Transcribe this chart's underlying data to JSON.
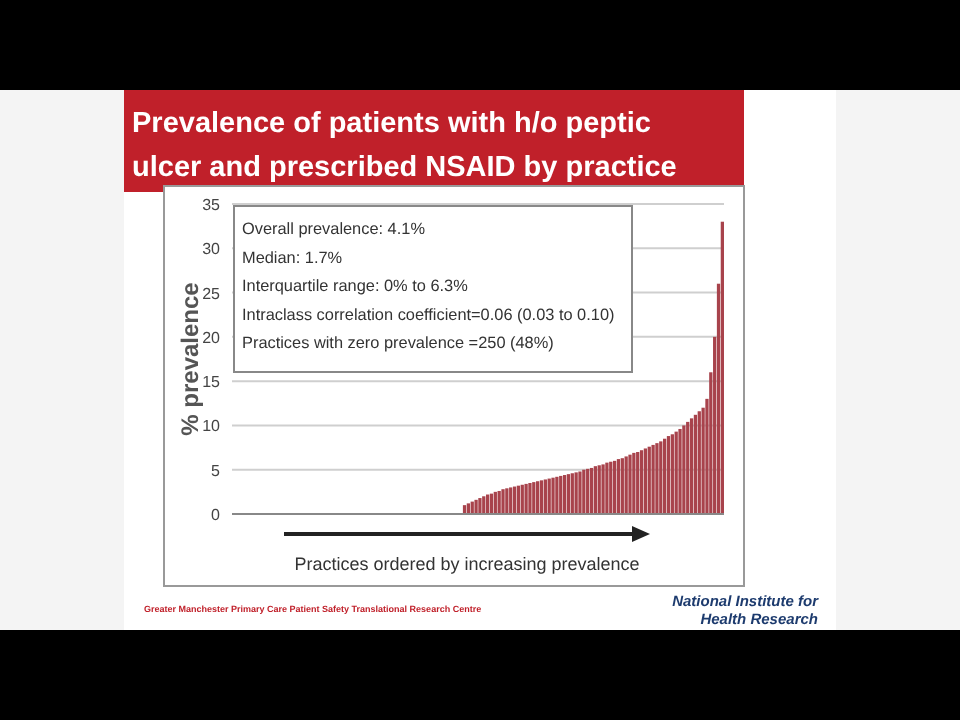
{
  "chart_data": {
    "type": "bar",
    "title": "Prevalence of patients with h/o peptic ulcer and prescribed NSAID by practice",
    "xlabel": "Practices ordered by increasing prevalence",
    "ylabel": "% prevalence",
    "categories": [
      null,
      null,
      null,
      null,
      null,
      null,
      null,
      null,
      null,
      null,
      null,
      null,
      null,
      null,
      null,
      null,
      null,
      null,
      null,
      null,
      null,
      null,
      null,
      null,
      null,
      null,
      null,
      null,
      null,
      null,
      null,
      null,
      null,
      null,
      null,
      null,
      null,
      null,
      null,
      null,
      null,
      null,
      null,
      null,
      null,
      null,
      null,
      null,
      null,
      null,
      null,
      null,
      null,
      null,
      null,
      null,
      null,
      null,
      null,
      null,
      null,
      null,
      null,
      null,
      null,
      null,
      null,
      null,
      null,
      null,
      null,
      null,
      null,
      null,
      null,
      null,
      null,
      null,
      null,
      null,
      null,
      null,
      null,
      null,
      null,
      null,
      null,
      null,
      null,
      null,
      null,
      null,
      null,
      null,
      null,
      null,
      null,
      null,
      null,
      null,
      null,
      null,
      null,
      null,
      null,
      null,
      null,
      null,
      null,
      null,
      null,
      null,
      null,
      null,
      null,
      null,
      null,
      null,
      null,
      null,
      null,
      null,
      null,
      null,
      null,
      null,
      null,
      null
    ],
    "values": [
      0,
      0,
      0,
      0,
      0,
      0,
      0,
      0,
      0,
      0,
      0,
      0,
      0,
      0,
      0,
      0,
      0,
      0,
      0,
      0,
      0,
      0,
      0,
      0,
      0,
      0,
      0,
      0,
      0,
      0,
      0,
      0,
      0,
      0,
      0,
      0,
      0,
      0,
      0,
      0,
      0,
      0,
      0,
      0,
      0,
      0,
      0,
      0,
      0,
      0,
      0,
      0,
      0,
      0,
      0,
      0,
      0,
      0,
      0,
      0,
      1.0,
      1.2,
      1.4,
      1.6,
      1.8,
      2.0,
      2.2,
      2.3,
      2.5,
      2.6,
      2.8,
      2.9,
      3.0,
      3.1,
      3.2,
      3.3,
      3.4,
      3.5,
      3.6,
      3.7,
      3.8,
      3.9,
      4.0,
      4.1,
      4.2,
      4.3,
      4.4,
      4.5,
      4.6,
      4.7,
      4.8,
      5.0,
      5.1,
      5.2,
      5.4,
      5.5,
      5.6,
      5.8,
      5.9,
      6.0,
      6.2,
      6.3,
      6.5,
      6.7,
      6.9,
      7.0,
      7.2,
      7.4,
      7.6,
      7.8,
      8.0,
      8.2,
      8.5,
      8.8,
      9.0,
      9.3,
      9.6,
      10.0,
      10.4,
      10.8,
      11.2,
      11.6,
      12.0,
      13.0,
      16.0,
      20.0,
      26.0,
      33.0
    ],
    "color": "#a8434c",
    "ylim": [
      0,
      35
    ],
    "yticks": [
      0,
      5,
      10,
      15,
      20,
      25,
      30,
      35
    ],
    "grid": "y",
    "annotations": [
      "Overall prevalence: 4.1%",
      "Median: 1.7%",
      "Interquartile range: 0% to 6.3%",
      "Intraclass correlation coefficient=0.06 (0.03 to 0.10)",
      "Practices with zero prevalence =250 (48%)",
      "Greater Manchester Primary Care Patient Safety Translational Research Centre",
      "National Institute for Health Research"
    ]
  }
}
